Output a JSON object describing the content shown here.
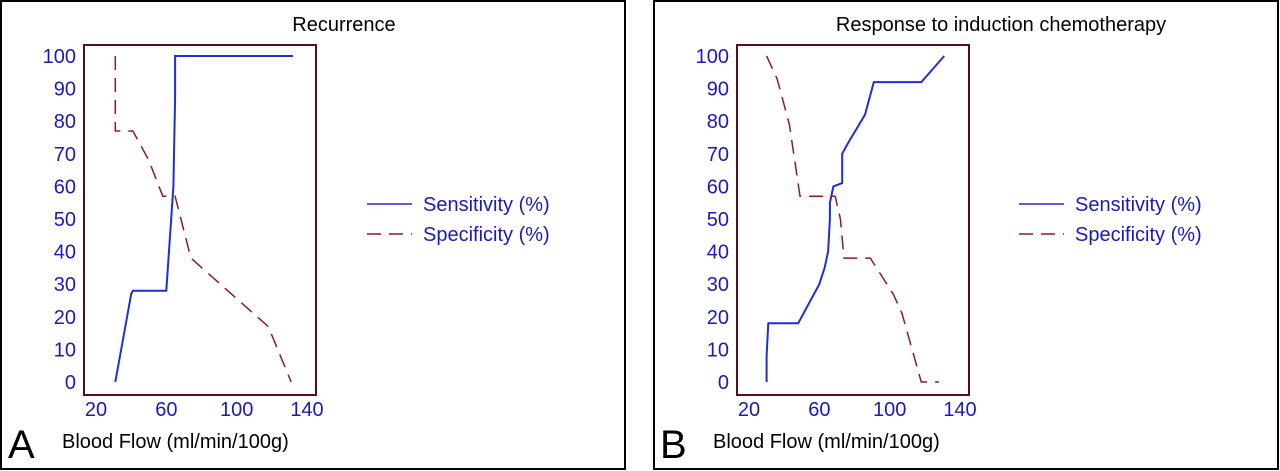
{
  "colors": {
    "sensitivity": "#1f2fd0",
    "specificity": "#8b1a2a",
    "axis": "#5a0a1a",
    "tick_text": "#1a1ab8"
  },
  "chart_data": [
    {
      "type": "line",
      "panel_label": "A",
      "title": "Recurrence",
      "xlabel": "Blood Flow (ml/min/100g)",
      "ylabel": "",
      "xlim": [
        20,
        140
      ],
      "ylim": [
        0,
        100
      ],
      "xticks": [
        20,
        60,
        100,
        140
      ],
      "yticks": [
        0,
        10,
        20,
        30,
        40,
        50,
        60,
        70,
        80,
        90,
        100
      ],
      "legend_position": "right",
      "series": [
        {
          "name": "Sensitivity (%)",
          "style": "solid",
          "x": [
            31,
            40,
            41,
            59,
            60,
            64,
            65,
            65,
            132
          ],
          "y": [
            0,
            27,
            28,
            28,
            28,
            60,
            87,
            100,
            100
          ]
        },
        {
          "name": "Specificity (%)",
          "style": "dashed",
          "x": [
            31,
            31,
            31,
            41,
            50,
            58,
            65,
            74,
            118,
            131
          ],
          "y": [
            100,
            80,
            77,
            77,
            68,
            57,
            57,
            38,
            17,
            0
          ]
        }
      ]
    },
    {
      "type": "line",
      "panel_label": "B",
      "title": "Response to induction chemotherapy",
      "xlabel": "Blood Flow (ml/min/100g)",
      "ylabel": "",
      "xlim": [
        20,
        140
      ],
      "ylim": [
        0,
        100
      ],
      "xticks": [
        20,
        60,
        100,
        140
      ],
      "yticks": [
        0,
        10,
        20,
        30,
        40,
        50,
        60,
        70,
        80,
        90,
        100
      ],
      "legend_position": "right",
      "series": [
        {
          "name": "Sensitivity (%)",
          "style": "solid",
          "x": [
            30,
            30,
            31,
            48,
            55,
            60,
            63,
            65,
            66,
            66,
            68,
            73,
            73,
            76,
            86,
            91,
            118,
            131
          ],
          "y": [
            0,
            8,
            18,
            18,
            25,
            30,
            35,
            40,
            50,
            55,
            60,
            61,
            70,
            73,
            82,
            92,
            92,
            100
          ],
          "line_width": 2
        },
        {
          "name": "Specificity (%)",
          "style": "dashed",
          "x": [
            30,
            36,
            43,
            49,
            62,
            69,
            72,
            74,
            89,
            102,
            107,
            118,
            128
          ],
          "y": [
            100,
            93,
            79,
            57,
            57,
            57,
            50,
            38,
            38,
            27,
            21,
            0,
            0
          ]
        }
      ]
    }
  ]
}
